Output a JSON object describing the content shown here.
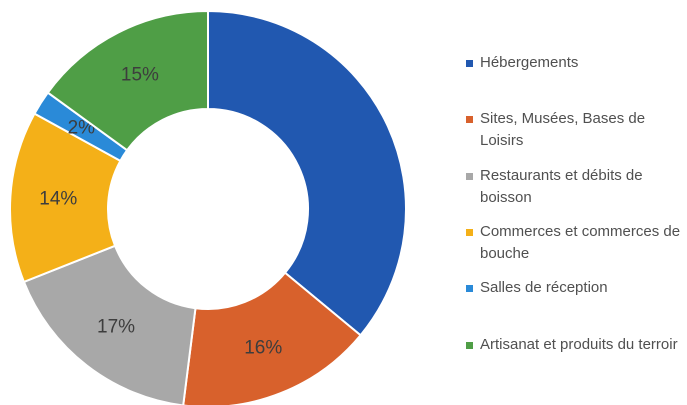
{
  "chart_data": {
    "type": "donut",
    "categories": [
      "Hébergements",
      "Sites, Musées, Bases de Loisirs",
      "Restaurants et débits de boisson",
      "Commerces et commerces de bouche",
      "Salles de réception",
      "Artisanat et produits du terroir"
    ],
    "values": [
      36,
      16,
      17,
      14,
      2,
      15
    ],
    "value_labels": [
      null,
      "16%",
      "17%",
      "14%",
      "2%",
      "15%"
    ],
    "colors": [
      "#2158b0",
      "#d8612c",
      "#a8a8a8",
      "#f4b018",
      "#2a8ad8",
      "#4f9e46"
    ],
    "legend": "right"
  }
}
